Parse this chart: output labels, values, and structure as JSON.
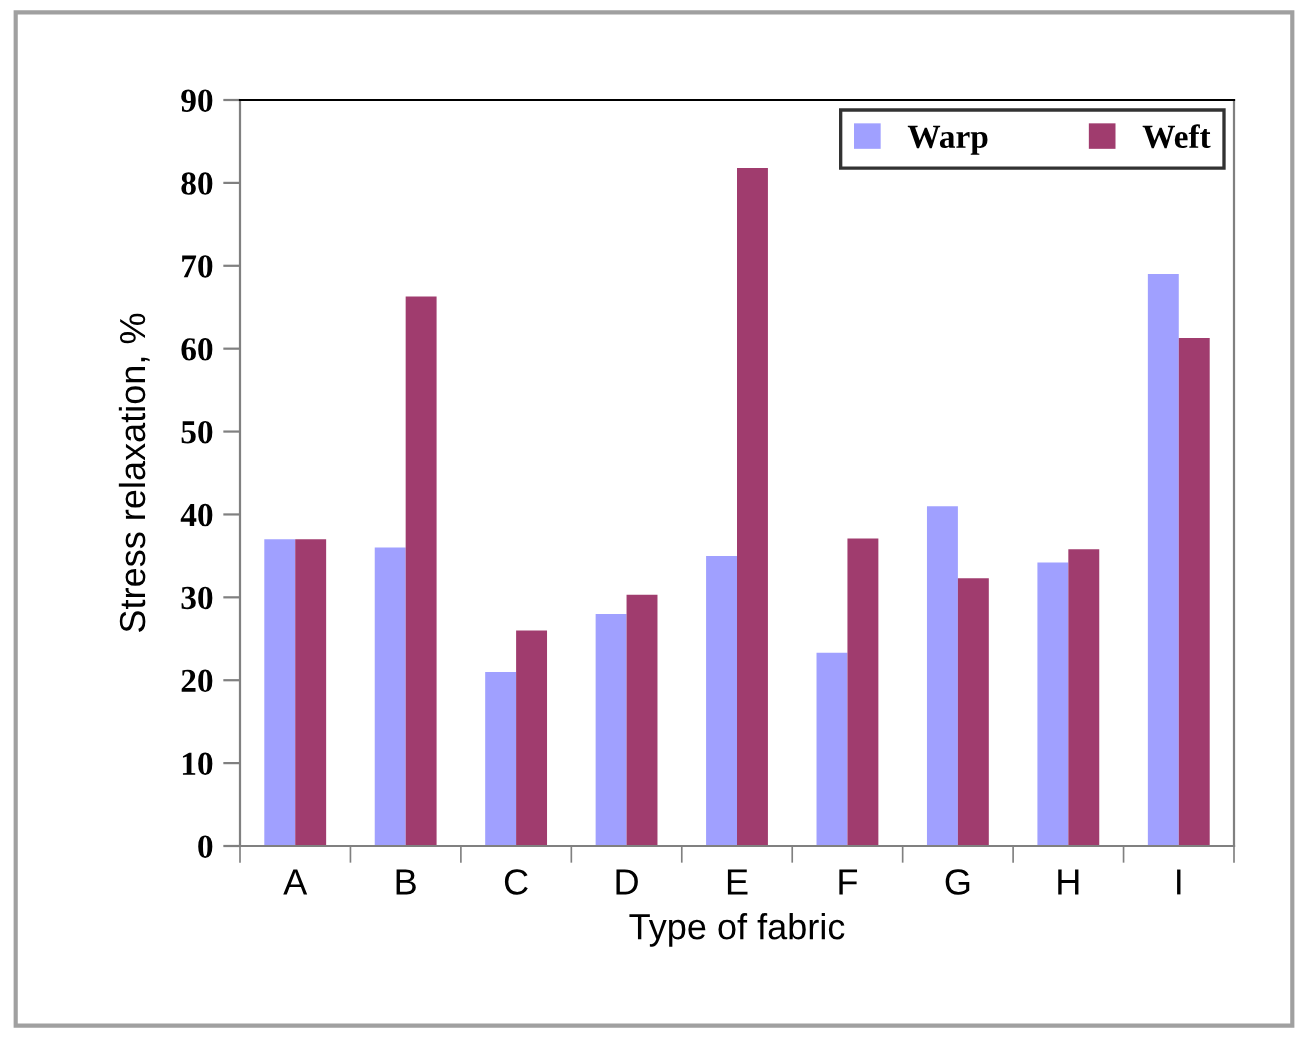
{
  "chart_data": {
    "type": "bar",
    "xlabel": "Type of fabric",
    "ylabel": "Stress relaxation, %",
    "categories": [
      "A",
      "B",
      "C",
      "D",
      "E",
      "F",
      "G",
      "H",
      "I"
    ],
    "series": [
      {
        "name": "Warp",
        "color": "#a0a0ff",
        "values": [
          37,
          36,
          21,
          28,
          35,
          23.3,
          41,
          34.2,
          69
        ]
      },
      {
        "name": "Weft",
        "color": "#a03c6e",
        "values": [
          37,
          66.3,
          26,
          30.3,
          81.8,
          37.1,
          32.3,
          35.8,
          61.3
        ]
      }
    ],
    "ylim": [
      0,
      90
    ],
    "yticks": [
      0,
      10,
      20,
      30,
      40,
      50,
      60,
      70,
      80,
      90
    ],
    "grid": false,
    "legend": "top right"
  }
}
